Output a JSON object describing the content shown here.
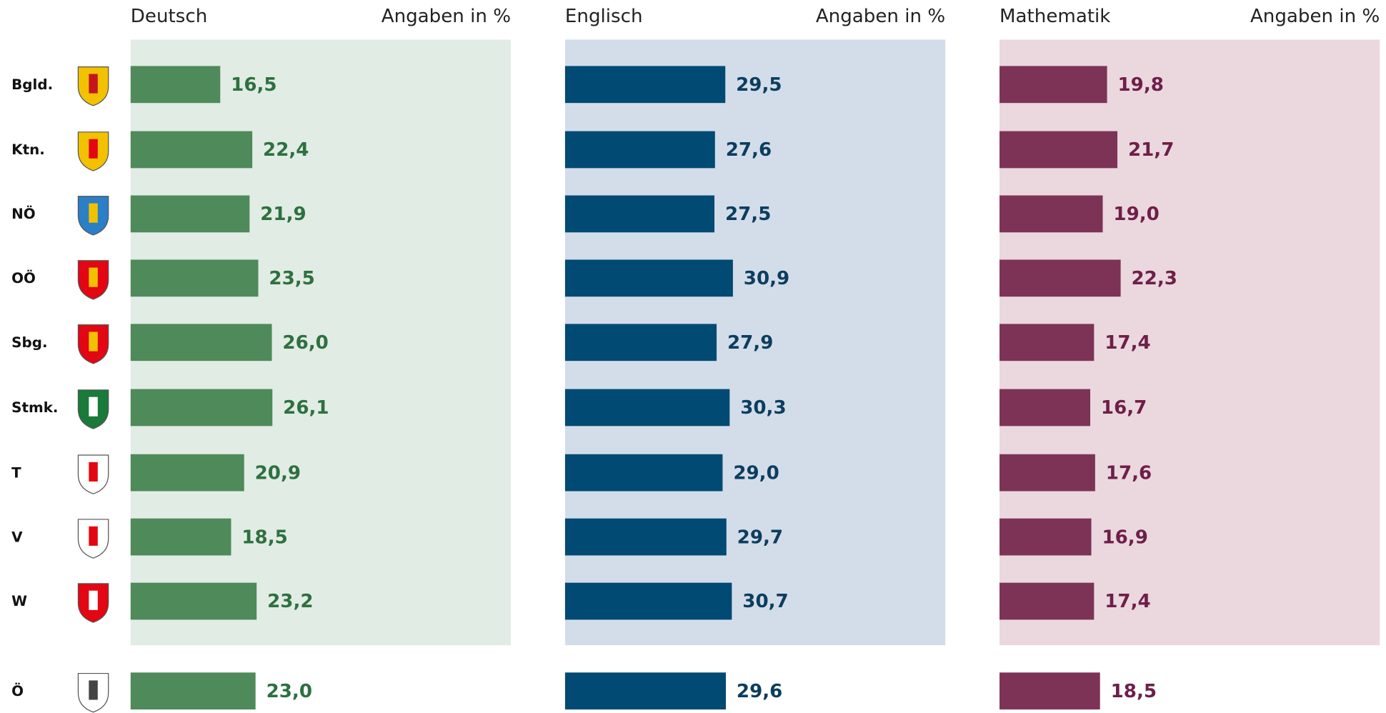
{
  "regions": [
    "Bgld.",
    "Ktn.",
    "NÖ",
    "OÖ",
    "Sbg.",
    "Stmk.",
    "T",
    "V",
    "W",
    "Ö"
  ],
  "chart_data": [
    {
      "type": "bar",
      "title": "Deutsch",
      "annotation": "Angaben in %",
      "color": "#4e8a5a",
      "label_color": "#2e7040",
      "background": "#e1ece4",
      "values": [
        16.5,
        22.4,
        21.9,
        23.5,
        26.0,
        26.1,
        20.9,
        18.5,
        23.2,
        23.0
      ],
      "value_labels": [
        "16,5",
        "22,4",
        "21,9",
        "23,5",
        "26,0",
        "26,1",
        "20,9",
        "18,5",
        "23,2",
        "23,0"
      ],
      "xlim": [
        0,
        70
      ]
    },
    {
      "type": "bar",
      "title": "Englisch",
      "annotation": "Angaben in %",
      "color": "#004a73",
      "label_color": "#0c3d5e",
      "background": "#d3dde9",
      "values": [
        29.5,
        27.6,
        27.5,
        30.9,
        27.9,
        30.3,
        29.0,
        29.7,
        30.7,
        29.6
      ],
      "value_labels": [
        "29,5",
        "27,6",
        "27,5",
        "30,9",
        "27,9",
        "30,3",
        "29,0",
        "29,7",
        "30,7",
        "29,6"
      ],
      "xlim": [
        0,
        70
      ]
    },
    {
      "type": "bar",
      "title": "Mathematik",
      "annotation": "Angaben in %",
      "color": "#7d3356",
      "label_color": "#6e1f48",
      "background": "#ead8de",
      "values": [
        19.8,
        21.7,
        19.0,
        22.3,
        17.4,
        16.7,
        17.6,
        16.9,
        17.4,
        18.5
      ],
      "value_labels": [
        "19,8",
        "21,7",
        "19,0",
        "22,3",
        "17,4",
        "16,7",
        "17,6",
        "16,9",
        "17,4",
        "18,5"
      ],
      "xlim": [
        0,
        70
      ]
    }
  ]
}
